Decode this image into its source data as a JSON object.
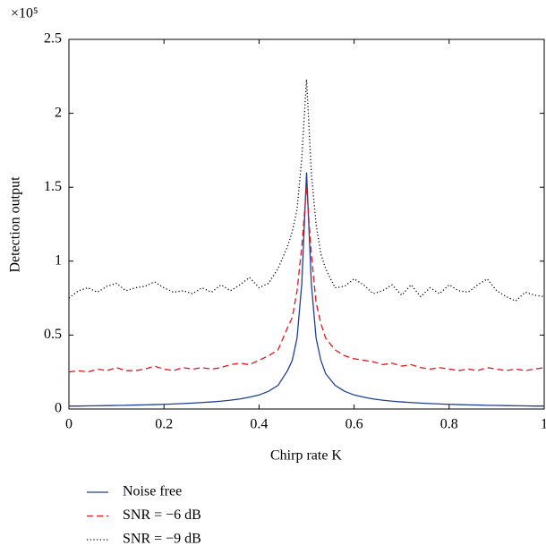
{
  "chart_data": {
    "type": "line",
    "y_multiplier": "×10⁵",
    "xlabel": "Chirp rate K",
    "ylabel": "Detection output",
    "x": [
      0,
      0.02,
      0.04,
      0.06,
      0.08,
      0.1,
      0.12,
      0.14,
      0.16,
      0.18,
      0.2,
      0.22,
      0.24,
      0.26,
      0.28,
      0.3,
      0.32,
      0.34,
      0.36,
      0.38,
      0.4,
      0.42,
      0.44,
      0.46,
      0.47,
      0.48,
      0.49,
      0.5,
      0.51,
      0.52,
      0.53,
      0.54,
      0.56,
      0.58,
      0.6,
      0.62,
      0.64,
      0.66,
      0.68,
      0.7,
      0.72,
      0.74,
      0.76,
      0.78,
      0.8,
      0.82,
      0.84,
      0.86,
      0.88,
      0.9,
      0.92,
      0.94,
      0.96,
      0.98,
      1
    ],
    "series": [
      {
        "name": "Noise free",
        "color": "#1f3f99",
        "dash": "solid",
        "values": [
          0.02,
          0.02,
          0.021,
          0.022,
          0.023,
          0.024,
          0.025,
          0.027,
          0.028,
          0.03,
          0.032,
          0.034,
          0.037,
          0.04,
          0.044,
          0.048,
          0.053,
          0.06,
          0.068,
          0.08,
          0.095,
          0.12,
          0.16,
          0.26,
          0.33,
          0.48,
          0.85,
          1.6,
          0.85,
          0.48,
          0.33,
          0.24,
          0.16,
          0.12,
          0.095,
          0.08,
          0.068,
          0.06,
          0.053,
          0.048,
          0.044,
          0.04,
          0.037,
          0.034,
          0.032,
          0.03,
          0.028,
          0.027,
          0.025,
          0.024,
          0.023,
          0.022,
          0.021,
          0.02,
          0.02
        ]
      },
      {
        "name": "SNR = −6 dB",
        "color": "#e8141c",
        "dash": "dashed",
        "values": [
          0.25,
          0.26,
          0.25,
          0.27,
          0.26,
          0.28,
          0.26,
          0.26,
          0.27,
          0.29,
          0.27,
          0.26,
          0.28,
          0.27,
          0.28,
          0.27,
          0.28,
          0.3,
          0.31,
          0.3,
          0.33,
          0.36,
          0.4,
          0.55,
          0.62,
          0.8,
          1.1,
          1.5,
          1.05,
          0.72,
          0.58,
          0.48,
          0.4,
          0.36,
          0.34,
          0.33,
          0.32,
          0.3,
          0.31,
          0.29,
          0.3,
          0.28,
          0.27,
          0.28,
          0.27,
          0.26,
          0.27,
          0.26,
          0.28,
          0.27,
          0.26,
          0.27,
          0.26,
          0.27,
          0.28
        ]
      },
      {
        "name": "SNR = −9 dB",
        "color": "#000000",
        "dash": "dotted",
        "values": [
          0.75,
          0.8,
          0.82,
          0.79,
          0.83,
          0.85,
          0.8,
          0.82,
          0.83,
          0.86,
          0.82,
          0.79,
          0.8,
          0.78,
          0.82,
          0.79,
          0.84,
          0.8,
          0.84,
          0.89,
          0.82,
          0.85,
          0.95,
          1.1,
          1.2,
          1.35,
          1.7,
          2.23,
          1.6,
          1.25,
          1.05,
          0.95,
          0.82,
          0.83,
          0.88,
          0.84,
          0.78,
          0.8,
          0.84,
          0.77,
          0.84,
          0.76,
          0.82,
          0.78,
          0.84,
          0.8,
          0.79,
          0.84,
          0.88,
          0.8,
          0.76,
          0.73,
          0.79,
          0.77,
          0.76
        ]
      }
    ],
    "xlim": [
      0,
      1
    ],
    "ylim": [
      0,
      2.5
    ],
    "xticks": [
      0,
      0.2,
      0.4,
      0.6,
      0.8,
      1
    ],
    "yticks": [
      0,
      0.5,
      1,
      1.5,
      2,
      2.5
    ],
    "grid": false
  }
}
